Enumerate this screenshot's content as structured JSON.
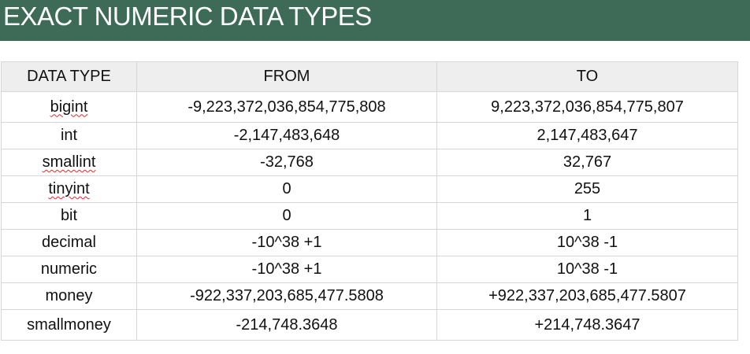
{
  "title": "EXACT NUMERIC DATA TYPES",
  "table": {
    "headers": [
      "DATA TYPE",
      "FROM",
      "TO"
    ],
    "rows": [
      {
        "type": "bigint",
        "from": "-9,223,372,036,854,775,808",
        "to": "9,223,372,036,854,775,807",
        "spell_flag": true
      },
      {
        "type": "int",
        "from": "-2,147,483,648",
        "to": "2,147,483,647",
        "spell_flag": false
      },
      {
        "type": "smallint",
        "from": "-32,768",
        "to": "32,767",
        "spell_flag": true
      },
      {
        "type": "tinyint",
        "from": "0",
        "to": "255",
        "spell_flag": true
      },
      {
        "type": "bit",
        "from": "0",
        "to": "1",
        "spell_flag": false
      },
      {
        "type": "decimal",
        "from": "-10^38 +1",
        "to": "10^38 -1",
        "spell_flag": false
      },
      {
        "type": "numeric",
        "from": "-10^38 +1",
        "to": "10^38 -1",
        "spell_flag": false
      },
      {
        "type": "money",
        "from": "-922,337,203,685,477.5808",
        "to": "+922,337,203,685,477.5807",
        "spell_flag": false
      },
      {
        "type": "smallmoney",
        "from": "-214,748.3648",
        "to": "+214,748.3647",
        "spell_flag": false
      }
    ]
  },
  "colors": {
    "banner": "#3d6b58",
    "header_fill": "#eeeeee",
    "grid_line": "#d7d7d7",
    "spell_underline": "#d23030"
  }
}
